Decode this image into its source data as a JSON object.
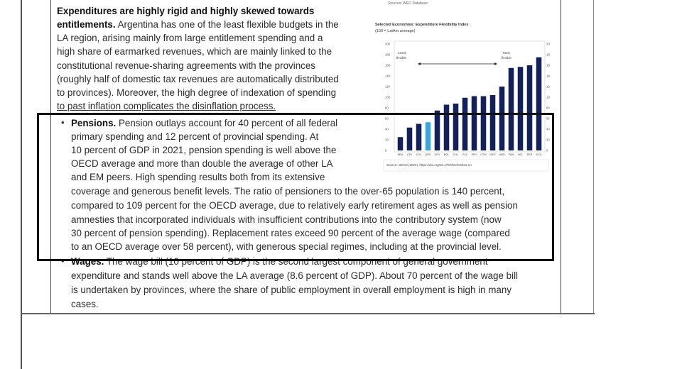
{
  "paragraph1": {
    "lines": [
      "Expenditures are highly rigid and highly skewed towards",
      "entitlements.",
      " Argentina has one of the least flexible budgets in the",
      "LA region, arising mainly from large entitlement spending and a",
      "high share of earmarked revenues, which are mainly linked to the",
      "constitutional revenue-sharing agreements with the provinces",
      "(roughly half of domestic tax revenues are automatically distributed",
      "to provinces). Moreover, the high degree of indexation of spending",
      "to past inflation complicates the disinflation process."
    ]
  },
  "pensions": {
    "bullet": "•",
    "heading": "Pensions.",
    "lines": [
      " Pension outlays account for 40 percent of all federal",
      "primary spending and 12 percent of provincial spending. At",
      "10 percent of GDP in 2021, pension spending is well above the",
      "OECD average and more than double the average of other LA",
      "and EM peers. High spending results both from its extensive",
      "coverage and generous benefit levels. The ratio of pensioners to the over-65 population is 140 percent,",
      "compared to 109 percent for the OECD average, due to relatively early retirement ages as well as pension",
      "amnesties that incorporated individuals with insufficient contributions into the contributory system (now",
      "30 percent of pension spending). Replacement rates exceed 90 percent of the average wage (compared",
      "to an OECD average over 58 percent), with generous special regimes, including at the provincial level."
    ]
  },
  "wages": {
    "bullet": "•",
    "heading": "Wages.",
    "lines": [
      " The wage bill (10 percent of GDP) is the second largest component of general government",
      "expenditure and stands well above the LA average (8.6 percent of GDP). About 70 percent of the wage bill",
      "is undertaken by provinces, where the share of public employment in overall employment is high in many",
      "cases."
    ]
  },
  "chart_data": {
    "type": "bar",
    "top_source": "Sources: WEO Database",
    "title": "Selected Economies: Expenditure Flexibility Index",
    "subtitle": "(100 = LatAm average)",
    "categories": [
      "BRA",
      "CRI",
      "COL",
      "ARG",
      "URY",
      "BOL",
      "CHL",
      "SLV",
      "PRY",
      "GTM",
      "MEX",
      "HND",
      "PAN",
      "NIC",
      "PER",
      "ECU"
    ],
    "values": [
      25,
      43,
      50,
      53,
      75,
      86,
      88,
      99,
      102,
      102,
      104,
      120,
      155,
      157,
      160,
      175
    ],
    "highlight_category": "ARG",
    "ylim": [
      0,
      200
    ],
    "yticks": [
      0,
      20,
      40,
      60,
      80,
      100,
      120,
      140,
      160,
      180,
      200
    ],
    "annotation_left": [
      "Least",
      "flexible"
    ],
    "annotation_right": [
      "Most",
      "flexible"
    ],
    "source": "Source: OECD (2020). https://doi.org/10.1787/9cefc5b2a-en",
    "colors": {
      "bar": "#14205a",
      "highlight": "#3aa6dc"
    }
  }
}
